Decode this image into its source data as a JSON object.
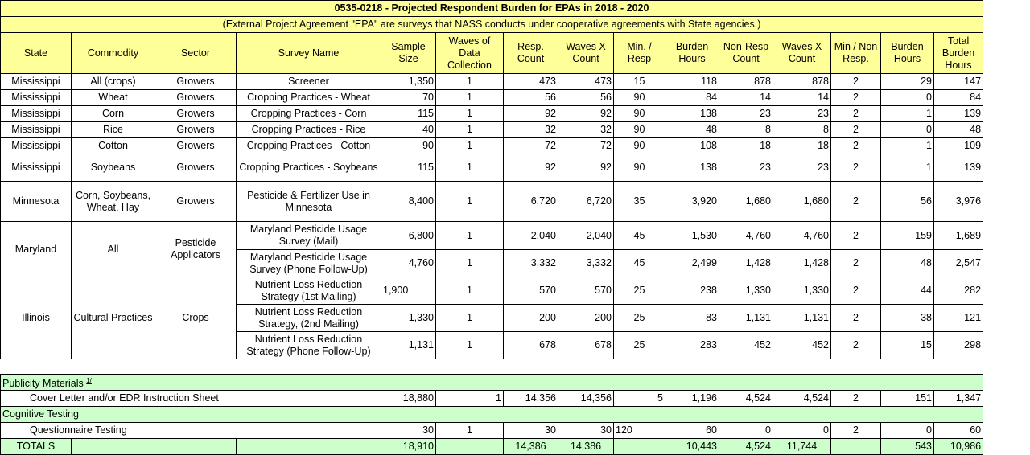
{
  "title": "0535-0218 - Projected Respondent Burden for EPAs in 2018 - 2020",
  "subtitle": "(External Project Agreement \"EPA\" are surveys that NASS conducts under cooperative agreements with State agencies.)",
  "columns": [
    "State",
    "Commodity",
    "Sector",
    "Survey Name",
    "Sample Size",
    "Waves of Data Collection",
    "Resp. Count",
    "Waves X Count",
    "Min. / Resp",
    "Burden Hours",
    "Non-Resp Count",
    "Waves X Count",
    "Min / Non Resp.",
    "Burden Hours",
    "Total Burden Hours"
  ],
  "groups": [
    {
      "state": "Mississippi",
      "commodity": "All (crops)",
      "sector": "Growers",
      "surveys": [
        {
          "name": "Screener",
          "values": [
            "1,350",
            "1",
            "473",
            "473",
            "15",
            "118",
            "878",
            "878",
            "2",
            "29",
            "147"
          ]
        }
      ]
    },
    {
      "state": "Mississippi",
      "commodity": "Wheat",
      "sector": "Growers",
      "surveys": [
        {
          "name": "Cropping Practices - Wheat",
          "values": [
            "70",
            "1",
            "56",
            "56",
            "90",
            "84",
            "14",
            "14",
            "2",
            "0",
            "84"
          ]
        }
      ]
    },
    {
      "state": "Mississippi",
      "commodity": "Corn",
      "sector": "Growers",
      "surveys": [
        {
          "name": "Cropping Practices - Corn",
          "values": [
            "115",
            "1",
            "92",
            "92",
            "90",
            "138",
            "23",
            "23",
            "2",
            "1",
            "139"
          ]
        }
      ]
    },
    {
      "state": "Mississippi",
      "commodity": "Rice",
      "sector": "Growers",
      "surveys": [
        {
          "name": "Cropping Practices - Rice",
          "values": [
            "40",
            "1",
            "32",
            "32",
            "90",
            "48",
            "8",
            "8",
            "2",
            "0",
            "48"
          ]
        }
      ]
    },
    {
      "state": "Mississippi",
      "commodity": "Cotton",
      "sector": "Growers",
      "surveys": [
        {
          "name": "Cropping Practices - Cotton",
          "values": [
            "90",
            "1",
            "72",
            "72",
            "90",
            "108",
            "18",
            "18",
            "2",
            "1",
            "109"
          ]
        }
      ]
    },
    {
      "state": "Mississippi",
      "commodity": "Soybeans",
      "sector": "Growers",
      "surveys": [
        {
          "name": "Cropping Practices - Soybeans",
          "values": [
            "115",
            "1",
            "92",
            "92",
            "90",
            "138",
            "23",
            "23",
            "2",
            "1",
            "139"
          ]
        }
      ]
    },
    {
      "state": "Minnesota",
      "commodity": "Corn, Soybeans, Wheat, Hay",
      "sector": "Growers",
      "surveys": [
        {
          "name": "Pesticide & Fertilizer Use in Minnesota",
          "values": [
            "8,400",
            "1",
            "6,720",
            "6,720",
            "35",
            "3,920",
            "1,680",
            "1,680",
            "2",
            "56",
            "3,976"
          ]
        }
      ]
    },
    {
      "state": "Maryland",
      "commodity": "All",
      "sector": "Pesticide Applicators",
      "surveys": [
        {
          "name": "Maryland Pesticide Usage Survey (Mail)",
          "values": [
            "6,800",
            "1",
            "2,040",
            "2,040",
            "45",
            "1,530",
            "4,760",
            "4,760",
            "2",
            "159",
            "1,689"
          ]
        },
        {
          "name": "Maryland Pesticide Usage Survey (Phone Follow-Up)",
          "values": [
            "4,760",
            "1",
            "3,332",
            "3,332",
            "45",
            "2,499",
            "1,428",
            "1,428",
            "2",
            "48",
            "2,547"
          ]
        }
      ]
    },
    {
      "state": "Illinois",
      "commodity": "Cultural Practices",
      "sector": "Crops",
      "surveys": [
        {
          "name": "Nutrient Loss Reduction Strategy (1st Mailing)",
          "values": [
            "1,900",
            "1",
            "570",
            "570",
            "25",
            "238",
            "1,330",
            "1,330",
            "2",
            "44",
            "282"
          ]
        },
        {
          "name": "Nutrient Loss Reduction Strategy, (2nd Mailing)",
          "values": [
            "1,330",
            "1",
            "200",
            "200",
            "25",
            "83",
            "1,131",
            "1,131",
            "2",
            "38",
            "121"
          ]
        },
        {
          "name": "Nutrient Loss Reduction Strategy (Phone Follow-Up)",
          "values": [
            "1,131",
            "1",
            "678",
            "678",
            "25",
            "283",
            "452",
            "452",
            "2",
            "15",
            "298"
          ]
        }
      ]
    }
  ],
  "sections": [
    {
      "label": "Publicity Materials",
      "footnote": "1/",
      "item": {
        "name": "Cover Letter and/or EDR Instruction Sheet",
        "values": [
          "18,880",
          "1",
          "14,356",
          "14,356",
          "5",
          "1,196",
          "4,524",
          "4,524",
          "2",
          "151",
          "1,347"
        ]
      }
    },
    {
      "label": "Cognitive Testing",
      "item": {
        "name": "Questionnaire Testing",
        "values": [
          "30",
          "1",
          "30",
          "30",
          "120",
          "60",
          "0",
          "0",
          "2",
          "0",
          "60"
        ]
      }
    }
  ],
  "totals": {
    "label": "TOTALS",
    "values": [
      "18,910",
      "",
      "14,386",
      "14,386",
      "",
      "10,443",
      "4,524",
      "11,744",
      "",
      "543",
      "10,986"
    ]
  },
  "colors": {
    "header_fill": "#ffff99",
    "section_fill": "#ccffcc"
  }
}
